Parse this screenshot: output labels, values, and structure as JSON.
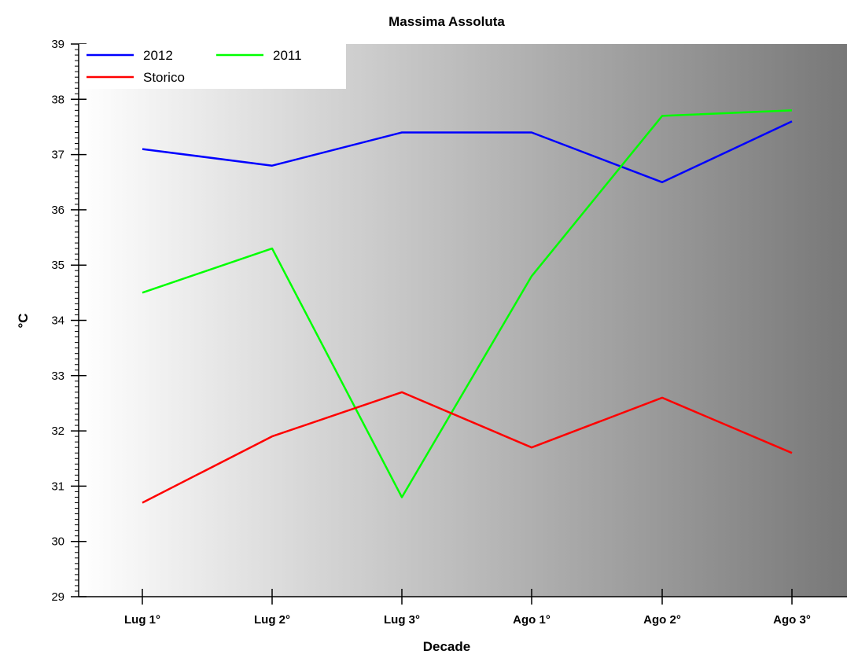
{
  "chart_data": {
    "type": "line",
    "title": "Massima Assoluta",
    "xlabel": "Decade",
    "ylabel": "°C",
    "categories": [
      "Lug 1°",
      "Lug 2°",
      "Lug 3°",
      "Ago 1°",
      "Ago 2°",
      "Ago 3°"
    ],
    "ylim": [
      29,
      39
    ],
    "yticks": [
      "29",
      "30",
      "31",
      "32",
      "33",
      "34",
      "35",
      "36",
      "37",
      "38",
      "39"
    ],
    "grid": false,
    "legend_position": "top-left",
    "background": "horizontal gradient from white to gray",
    "series": [
      {
        "name": "2012",
        "color": "#0000ff",
        "values": [
          37.1,
          36.8,
          37.4,
          37.4,
          36.5,
          37.6
        ]
      },
      {
        "name": "2011",
        "color": "#00ff00",
        "values": [
          34.5,
          35.3,
          30.8,
          34.8,
          37.7,
          37.8
        ]
      },
      {
        "name": "Storico",
        "color": "#ff0000",
        "values": [
          30.7,
          31.9,
          32.7,
          31.7,
          32.6,
          31.6
        ]
      }
    ]
  }
}
